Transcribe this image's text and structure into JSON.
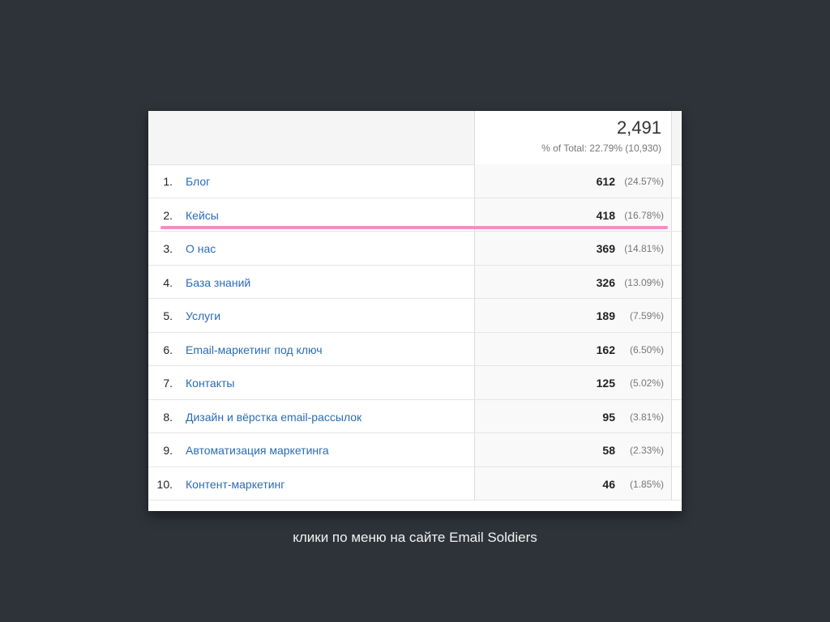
{
  "header": {
    "total_value": "2,491",
    "total_sub": "% of Total: 22.79% (10,930)"
  },
  "rows": [
    {
      "num": "1.",
      "label": "Блог",
      "value": "612",
      "pct": "(24.57%)"
    },
    {
      "num": "2.",
      "label": "Кейсы",
      "value": "418",
      "pct": "(16.78%)"
    },
    {
      "num": "3.",
      "label": "О нас",
      "value": "369",
      "pct": "(14.81%)"
    },
    {
      "num": "4.",
      "label": "База знаний",
      "value": "326",
      "pct": "(13.09%)"
    },
    {
      "num": "5.",
      "label": "Услуги",
      "value": "189",
      "pct": "(7.59%)"
    },
    {
      "num": "6.",
      "label": "Email-маркетинг под ключ",
      "value": "162",
      "pct": "(6.50%)"
    },
    {
      "num": "7.",
      "label": "Контакты",
      "value": "125",
      "pct": "(5.02%)"
    },
    {
      "num": "8.",
      "label": "Дизайн и вёрстка email-рассылок",
      "value": "95",
      "pct": "(3.81%)"
    },
    {
      "num": "9.",
      "label": "Автоматизация маркетинга",
      "value": "58",
      "pct": "(2.33%)"
    },
    {
      "num": "10.",
      "label": "Контент-маркетинг",
      "value": "46",
      "pct": "(1.85%)"
    }
  ],
  "caption": "клики по меню на сайте Email Soldiers",
  "colors": {
    "background": "#2e333a",
    "link": "#2a6cb5",
    "highlight": "#f58dc4"
  }
}
